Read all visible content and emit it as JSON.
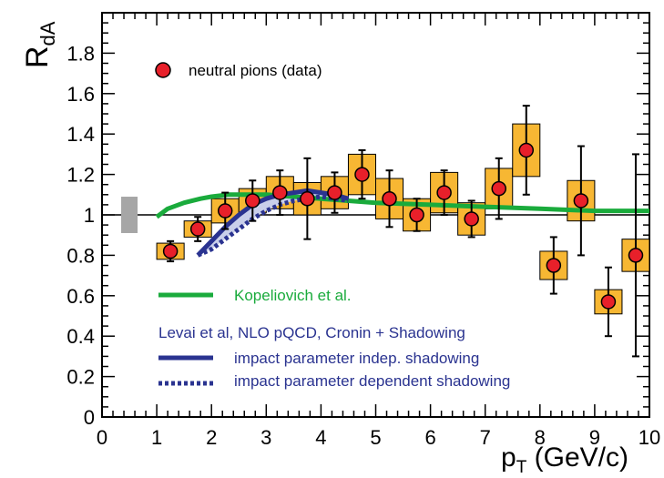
{
  "chart_data": {
    "type": "scatter",
    "xlabel": {
      "main": "p",
      "sub": "T",
      "unit": " (GeV/c)"
    },
    "ylabel": {
      "main": "R",
      "sub": "dA"
    },
    "xlim": [
      0,
      10
    ],
    "ylim": [
      0,
      2.0
    ],
    "x_ticks": [
      0,
      1,
      2,
      3,
      4,
      5,
      6,
      7,
      8,
      9,
      10
    ],
    "y_ticks": [
      0,
      0.2,
      0.4,
      0.6,
      0.8,
      1,
      1.2,
      1.4,
      1.6,
      1.8
    ],
    "x_tick_labels": [
      "0",
      "1",
      "2",
      "3",
      "4",
      "5",
      "6",
      "7",
      "8",
      "9",
      "10"
    ],
    "y_tick_labels": [
      "0",
      "0.2",
      "0.4",
      "0.6",
      "0.8",
      "1",
      "1.2",
      "1.4",
      "1.6",
      "1.8"
    ],
    "reference_line": 1.0,
    "norm_uncertainty_box": {
      "x": [
        0.35,
        0.65
      ],
      "y": [
        0.91,
        1.09
      ],
      "color": "#a6a6a6"
    },
    "points": [
      {
        "x": 1.25,
        "y": 0.82,
        "err": 0.05,
        "sys": 0.04,
        "bin": [
          1.0,
          1.5
        ]
      },
      {
        "x": 1.75,
        "y": 0.93,
        "err": 0.06,
        "sys": 0.04,
        "bin": [
          1.5,
          2.0
        ]
      },
      {
        "x": 2.25,
        "y": 1.02,
        "err": 0.09,
        "sys": 0.06,
        "bin": [
          2.0,
          2.5
        ]
      },
      {
        "x": 2.75,
        "y": 1.07,
        "err": 0.1,
        "sys": 0.06,
        "bin": [
          2.5,
          3.0
        ]
      },
      {
        "x": 3.25,
        "y": 1.11,
        "err": 0.11,
        "sys": 0.08,
        "bin": [
          3.0,
          3.5
        ]
      },
      {
        "x": 3.75,
        "y": 1.08,
        "err": 0.2,
        "sys": 0.08,
        "bin": [
          3.5,
          4.0
        ]
      },
      {
        "x": 4.25,
        "y": 1.11,
        "err": 0.1,
        "sys": 0.08,
        "bin": [
          4.0,
          4.5
        ]
      },
      {
        "x": 4.75,
        "y": 1.2,
        "err": 0.12,
        "sys": 0.1,
        "bin": [
          4.5,
          5.0
        ]
      },
      {
        "x": 5.25,
        "y": 1.08,
        "err": 0.14,
        "sys": 0.1,
        "bin": [
          5.0,
          5.5
        ]
      },
      {
        "x": 5.75,
        "y": 1.0,
        "err": 0.08,
        "sys": 0.08,
        "bin": [
          5.5,
          6.0
        ]
      },
      {
        "x": 6.25,
        "y": 1.11,
        "err": 0.11,
        "sys": 0.1,
        "bin": [
          6.0,
          6.5
        ]
      },
      {
        "x": 6.75,
        "y": 0.98,
        "err": 0.09,
        "sys": 0.08,
        "bin": [
          6.5,
          7.0
        ]
      },
      {
        "x": 7.25,
        "y": 1.13,
        "err": 0.15,
        "sys": 0.1,
        "bin": [
          7.0,
          7.5
        ]
      },
      {
        "x": 7.75,
        "y": 1.32,
        "err": 0.22,
        "sys": 0.13,
        "bin": [
          7.5,
          8.0
        ]
      },
      {
        "x": 8.25,
        "y": 0.75,
        "err": 0.14,
        "sys": 0.07,
        "bin": [
          8.0,
          8.5
        ]
      },
      {
        "x": 8.75,
        "y": 1.07,
        "err": 0.27,
        "sys": 0.1,
        "bin": [
          8.5,
          9.0
        ]
      },
      {
        "x": 9.25,
        "y": 0.57,
        "err": 0.17,
        "sys": 0.06,
        "bin": [
          9.0,
          9.5
        ]
      },
      {
        "x": 9.75,
        "y": 0.8,
        "err": 0.5,
        "sys": 0.08,
        "bin": [
          9.5,
          10.0
        ]
      }
    ],
    "series": [
      {
        "name": "Kopeliovich et al.",
        "color": "#1aab3c",
        "style": "solid",
        "x": [
          1.0,
          1.2,
          1.5,
          1.8,
          2.0,
          2.3,
          2.6,
          3.0,
          3.5,
          4.0,
          4.5,
          5.0,
          6.0,
          7.0,
          8.0,
          9.0,
          10.0
        ],
        "y": [
          0.99,
          1.03,
          1.06,
          1.08,
          1.09,
          1.1,
          1.1,
          1.1,
          1.09,
          1.08,
          1.07,
          1.06,
          1.05,
          1.04,
          1.03,
          1.02,
          1.02
        ]
      },
      {
        "name": "impact parameter indep. shadowing",
        "color": "#2a3390",
        "style": "solid",
        "x": [
          1.75,
          2.0,
          2.25,
          2.5,
          2.75,
          3.0,
          3.25,
          3.5,
          3.75,
          4.0,
          4.25,
          4.5
        ],
        "y": [
          0.8,
          0.87,
          0.94,
          1.0,
          1.05,
          1.08,
          1.1,
          1.11,
          1.12,
          1.11,
          1.1,
          1.08
        ]
      },
      {
        "name": "impact parameter dependent shadowing",
        "color": "#2a3390",
        "style": "dotted",
        "x": [
          1.75,
          2.0,
          2.25,
          2.5,
          2.75,
          3.0,
          3.25,
          3.5,
          3.75,
          4.0,
          4.25,
          4.5
        ],
        "y": [
          0.8,
          0.83,
          0.88,
          0.93,
          0.98,
          1.02,
          1.05,
          1.07,
          1.08,
          1.09,
          1.08,
          1.07
        ]
      }
    ],
    "legend": {
      "data_label": "neutral pions (data)",
      "kopeliovich_label": "Kopeliovich et al.",
      "levai_header": "Levai et al, NLO pQCD, Cronin + Shadowing",
      "indep_label": "impact parameter indep. shadowing",
      "dep_label": "impact parameter dependent shadowing"
    },
    "colors": {
      "marker_fill": "#e8202a",
      "box_fill": "#f7b733",
      "box_edge": "#000000",
      "band_fill": "#c9cfea",
      "kopeliovich": "#1aab3c",
      "levai": "#2a3390",
      "levai_text": "#2a3390",
      "kopeliovich_text": "#1aab3c"
    }
  }
}
